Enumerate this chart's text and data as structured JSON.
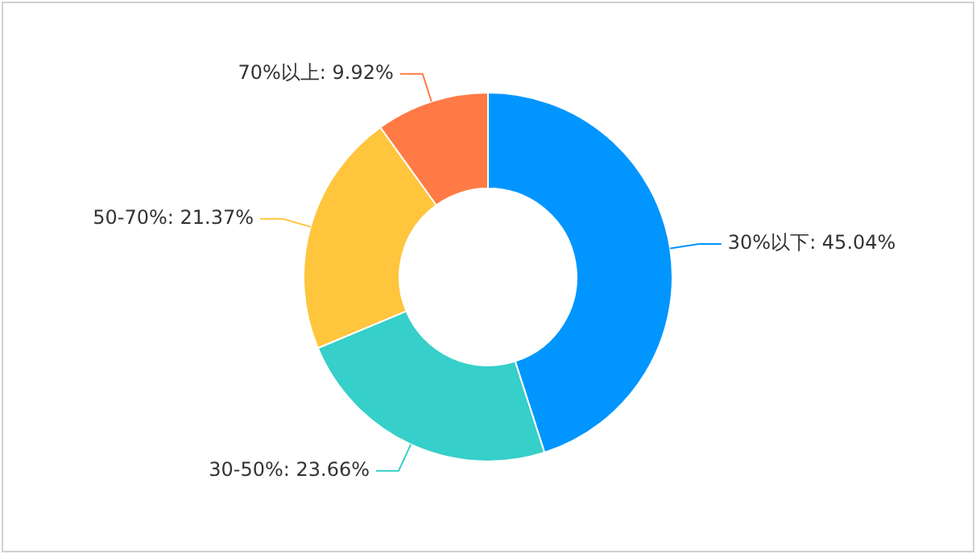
{
  "chart_data": {
    "type": "donut",
    "categories": [
      "30%以下",
      "30-50%",
      "50-70%",
      "70%以上"
    ],
    "values": [
      45.04,
      23.66,
      21.37,
      9.92
    ],
    "colors": [
      "#0095ff",
      "#36cfc9",
      "#ffc53d",
      "#ff7a45"
    ],
    "value_labels": [
      "45.04%",
      "23.66%",
      "21.37%",
      "9.92%"
    ],
    "legend": false
  }
}
